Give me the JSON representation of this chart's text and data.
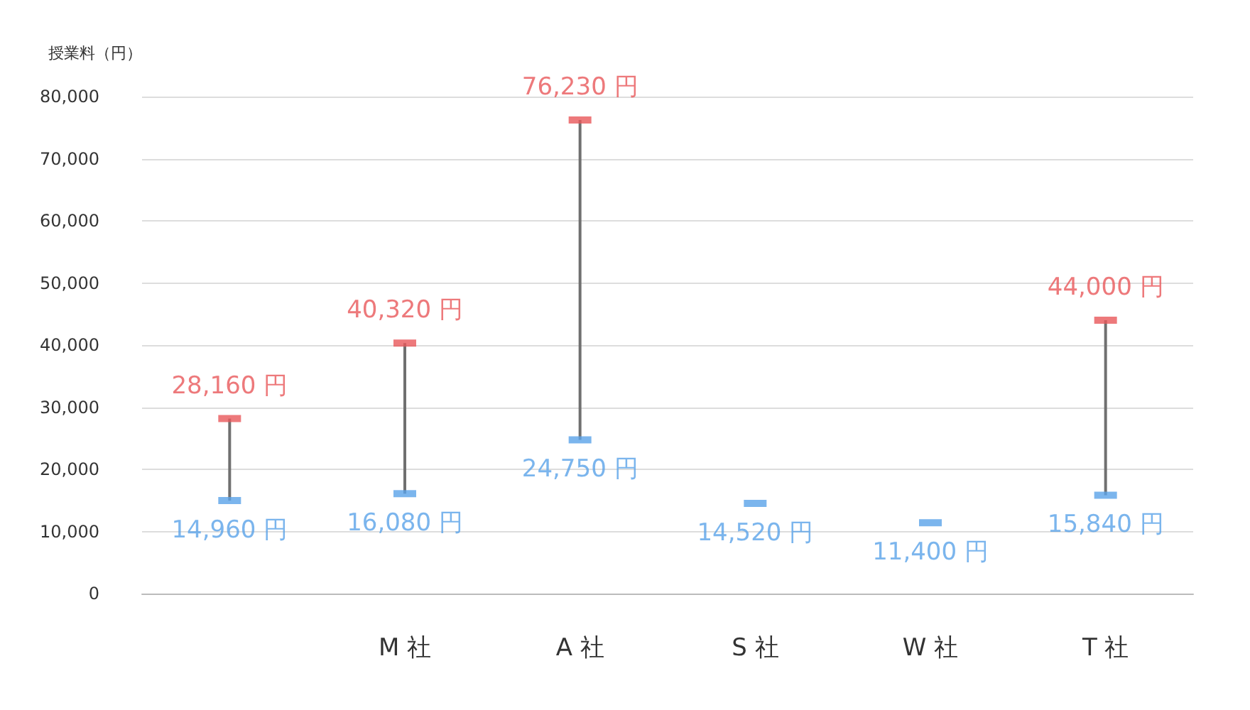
{
  "chart_data": {
    "type": "bar",
    "ylabel": "授業料（円）",
    "categories": [
      null,
      "M 社",
      "A 社",
      "S 社",
      "W 社",
      "T 社"
    ],
    "ylim": [
      0,
      80000
    ],
    "yticks": [
      0,
      {
        "value": 10000,
        "label": "10,000"
      },
      {
        "value": 20000,
        "label": "20,000"
      },
      {
        "value": 30000,
        "label": "30,000"
      },
      {
        "value": 40000,
        "label": "40,000"
      },
      {
        "value": 50000,
        "label": "50,000"
      },
      {
        "value": 60000,
        "label": "60,000"
      },
      {
        "value": 70000,
        "label": "70,000"
      },
      {
        "value": 80000,
        "label": "80,000"
      }
    ],
    "grid": "y",
    "marker": "square",
    "series": [
      {
        "color": "#707070",
        "base": [
          14960,
          16080,
          24750,
          null,
          null,
          15840
        ],
        "values": [
          13200,
          24240,
          51480,
          null,
          null,
          28160
        ]
      },
      {
        "type": "scatter",
        "color": "#e8585a",
        "values": [
          28160,
          40320,
          76230,
          null,
          null,
          44000
        ],
        "value_labels": [
          "28,160 円",
          "40,320 円",
          "76,230 円",
          null,
          null,
          "44,000 円"
        ]
      },
      {
        "type": "scatter",
        "color": "#5aa2e8",
        "values": [
          14960,
          16080,
          24750,
          14520,
          11400,
          15840
        ],
        "value_labels": [
          "14,960 円",
          "16,080 円",
          "24,750 円",
          "14,520 円",
          "11,400 円",
          "15,840 円"
        ]
      }
    ]
  }
}
